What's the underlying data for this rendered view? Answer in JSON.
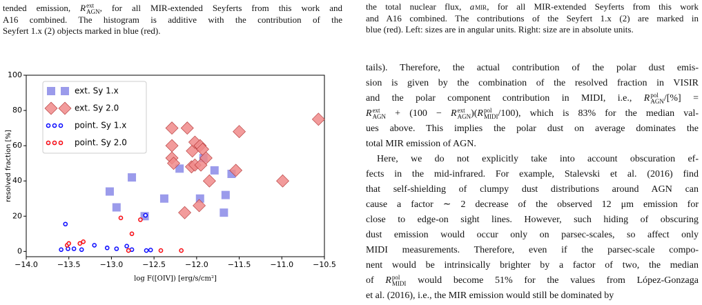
{
  "left_caption": [
    [
      "tended emission, ",
      {
        "b": "R",
        "sup": "ext",
        "sub": "AGN"
      },
      ", for all MIR-extended Seyferts from this work and"
    ],
    [
      "A16 combined. The histogram is additive with the contribution of the"
    ],
    [
      "Seyfert 1.x (2) objects marked in blue (red)."
    ]
  ],
  "right_caption": [
    [
      "the total nuclear flux, ",
      {
        "b": "a",
        "sub": "MIR"
      },
      ", for all MIR-extended Seyferts from this work"
    ],
    [
      "and A16 combined. The contributions of the Seyfert 1.x (2) are marked in"
    ],
    [
      "blue (red). Left: sizes are in angular units. Right: size are in absolute units."
    ]
  ],
  "body": [
    [
      "tails). Therefore, the actual contribution of the polar dust emis-"
    ],
    [
      "sion is given by the combination of the resolved fraction in VISIR"
    ],
    [
      "and the polar component contribution in MIDI, i.e., ",
      {
        "b": "R",
        "sup": "pol",
        "sub": "AGN"
      },
      "/[%] ="
    ],
    [
      {
        "b": "R",
        "sup": "ext",
        "sub": "AGN"
      },
      " + (100 − ",
      {
        "b": "R",
        "sup": "ext",
        "sub": "AGN"
      },
      ")(",
      {
        "b": "R",
        "sup": "pol",
        "sub": "MIDI"
      },
      "/100), which is 83% for the median val-"
    ],
    [
      "ues above. This implies the polar dust on average dominates the"
    ],
    [
      "total MIR emission of AGN."
    ],
    [
      "Here, we do not explicitly take into account obscuration ef-"
    ],
    [
      "fects in the mid-infrared. For example, Stalevski et al. (2016) find"
    ],
    [
      "that self-shielding of clumpy dust distributions around AGN can"
    ],
    [
      "cause a factor ∼ 2 decrease of the observed 12 μm emission for"
    ],
    [
      "close to edge-on sight lines. However, such hiding of obscuring"
    ],
    [
      "dust emission would occur only on parsec-scales, so affect only"
    ],
    [
      "MIDI measurements. Therefore, even if the parsec-scale compo-"
    ],
    [
      "nent would be intrinsically brighter by a factor of two, the median"
    ],
    [
      "of ",
      {
        "b": "R",
        "sup": "pol",
        "sub": "MIDI"
      },
      " would become 51% for the values from López-Gonzaga"
    ],
    [
      "et al. (2016), i.e., the MIR emission would still be dominated by"
    ]
  ],
  "chart_data": {
    "type": "scatter",
    "xlabel": "log F([OIV]) [erg/s/cm²]",
    "ylabel": "resolved fraction [%]",
    "xlim": [
      -14.0,
      -10.5
    ],
    "ylim": [
      -3,
      100
    ],
    "xticks": [
      {
        "value": -14.0,
        "label": "−14.0"
      },
      {
        "value": -13.5,
        "label": "−13.5"
      },
      {
        "value": -13.0,
        "label": "−13.0"
      },
      {
        "value": -12.5,
        "label": "−12.5"
      },
      {
        "value": -12.0,
        "label": "−12.0"
      },
      {
        "value": -11.5,
        "label": "−11.5"
      },
      {
        "value": -11.0,
        "label": "−11.0"
      },
      {
        "value": -10.5,
        "label": "−10.5"
      }
    ],
    "yticks": [
      0,
      20,
      40,
      60,
      80,
      100
    ],
    "legend": "upper left",
    "series": [
      {
        "name": "ext. Sy 1.x",
        "marker": "square",
        "color": "#8a8ae8",
        "x": [
          -13.02,
          -12.94,
          -12.76,
          -12.61,
          -12.38,
          -12.2,
          -11.96,
          -11.92,
          -11.79,
          -11.68,
          -11.66,
          -11.59
        ],
        "values": [
          34,
          25,
          42,
          20,
          30,
          47,
          30,
          53,
          46,
          22,
          32,
          44
        ]
      },
      {
        "name": "ext. Sy 2.0",
        "marker": "diamond",
        "color": "#f08a8a",
        "x": [
          -12.29,
          -12.11,
          -12.29,
          -12.29,
          -12.27,
          -12.14,
          -12.05,
          -12.02,
          -11.96,
          -11.93,
          -12.06,
          -12.02,
          -11.95,
          -11.89,
          -11.85,
          -11.97,
          -11.54,
          -11.5,
          -10.99,
          -10.57
        ],
        "values": [
          70,
          70,
          60,
          53,
          50,
          22,
          57,
          62,
          60,
          58,
          48,
          49,
          49,
          53,
          40,
          26,
          46,
          68,
          40,
          75
        ]
      },
      {
        "name": "point. Sy 1.x",
        "marker": "circle",
        "color": "#0000ff",
        "x": [
          -13.59,
          -13.51,
          -13.54,
          -13.44,
          -13.35,
          -13.2,
          -13.05,
          -12.94,
          -12.82,
          -12.76,
          -12.59,
          -12.54,
          -12.6
        ],
        "values": [
          1,
          1.5,
          15.5,
          1.5,
          1,
          3.5,
          2,
          1.5,
          3,
          1,
          0.5,
          0.8,
          20.5
        ]
      },
      {
        "name": "point. Sy 2.0",
        "marker": "circle",
        "color": "#ff0000",
        "x": [
          -12.89,
          -12.76,
          -12.66,
          -13.37,
          -13.33,
          -12.8,
          -12.42,
          -12.18,
          -13.52,
          -13.5
        ],
        "values": [
          19,
          10,
          18,
          4.5,
          5.5,
          0.5,
          0.5,
          0.5,
          3.5,
          4.5
        ]
      }
    ]
  }
}
